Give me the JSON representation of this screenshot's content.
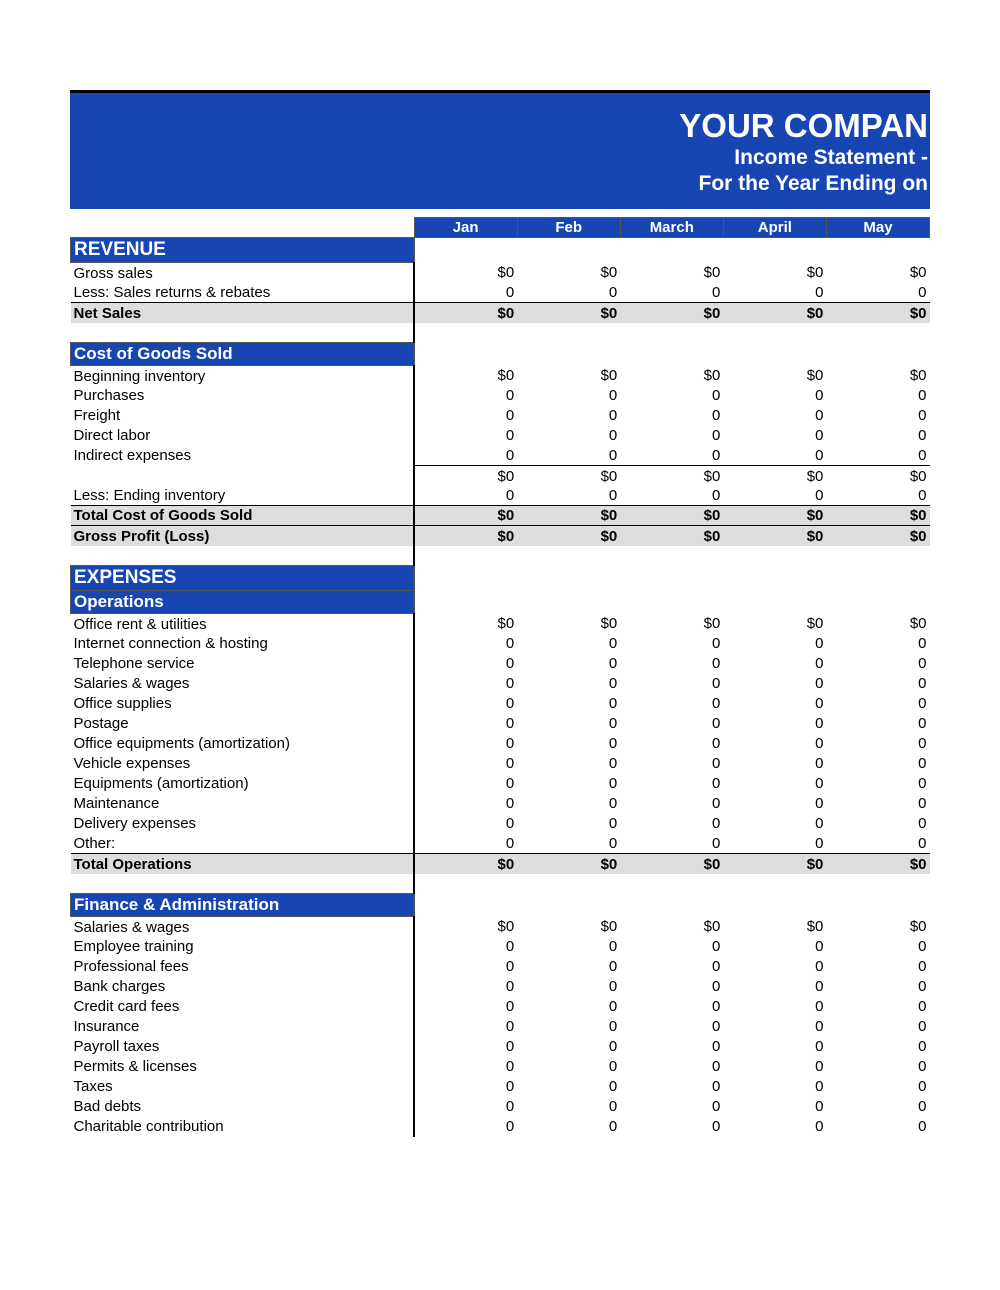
{
  "header": {
    "title": "YOUR COMPAN",
    "sub1": "Income Statement -",
    "sub2": "For the Year Ending on",
    "bg_color": "#1746b3",
    "text_color": "#ffffff"
  },
  "months": [
    "Jan",
    "Feb",
    "March",
    "April",
    "May"
  ],
  "sections": {
    "revenue": {
      "title": "REVENUE",
      "lines": [
        {
          "label": "Gross sales",
          "vals": [
            "$0",
            "$0",
            "$0",
            "$0",
            "$0"
          ]
        },
        {
          "label": "Less: Sales returns & rebates",
          "vals": [
            "0",
            "0",
            "0",
            "0",
            "0"
          ]
        }
      ],
      "net": {
        "label": "Net Sales",
        "vals": [
          "$0",
          "$0",
          "$0",
          "$0",
          "$0"
        ]
      }
    },
    "cogs": {
      "title": "Cost of Goods Sold",
      "lines": [
        {
          "label": "Beginning inventory",
          "vals": [
            "$0",
            "$0",
            "$0",
            "$0",
            "$0"
          ]
        },
        {
          "label": "Purchases",
          "vals": [
            "0",
            "0",
            "0",
            "0",
            "0"
          ]
        },
        {
          "label": "Freight",
          "vals": [
            "0",
            "0",
            "0",
            "0",
            "0"
          ]
        },
        {
          "label": "Direct labor",
          "vals": [
            "0",
            "0",
            "0",
            "0",
            "0"
          ]
        },
        {
          "label": "Indirect expenses",
          "vals": [
            "0",
            "0",
            "0",
            "0",
            "0"
          ]
        }
      ],
      "subtotal": {
        "label": "",
        "vals": [
          "$0",
          "$0",
          "$0",
          "$0",
          "$0"
        ]
      },
      "less": {
        "label": "Less: Ending inventory",
        "vals": [
          "0",
          "0",
          "0",
          "0",
          "0"
        ]
      },
      "total": {
        "label": "Total Cost of Goods Sold",
        "vals": [
          "$0",
          "$0",
          "$0",
          "$0",
          "$0"
        ]
      },
      "gross": {
        "label": "Gross Profit (Loss)",
        "vals": [
          "$0",
          "$0",
          "$0",
          "$0",
          "$0"
        ]
      }
    },
    "expenses_title": "EXPENSES",
    "operations": {
      "title": "Operations",
      "lines": [
        {
          "label": "Office rent & utilities",
          "vals": [
            "$0",
            "$0",
            "$0",
            "$0",
            "$0"
          ]
        },
        {
          "label": "Internet connection & hosting",
          "vals": [
            "0",
            "0",
            "0",
            "0",
            "0"
          ]
        },
        {
          "label": "Telephone service",
          "vals": [
            "0",
            "0",
            "0",
            "0",
            "0"
          ]
        },
        {
          "label": "Salaries & wages",
          "vals": [
            "0",
            "0",
            "0",
            "0",
            "0"
          ]
        },
        {
          "label": "Office supplies",
          "vals": [
            "0",
            "0",
            "0",
            "0",
            "0"
          ]
        },
        {
          "label": "Postage",
          "vals": [
            "0",
            "0",
            "0",
            "0",
            "0"
          ]
        },
        {
          "label": "Office equipments (amortization)",
          "vals": [
            "0",
            "0",
            "0",
            "0",
            "0"
          ]
        },
        {
          "label": "Vehicle expenses",
          "vals": [
            "0",
            "0",
            "0",
            "0",
            "0"
          ]
        },
        {
          "label": "Equipments (amortization)",
          "vals": [
            "0",
            "0",
            "0",
            "0",
            "0"
          ]
        },
        {
          "label": "Maintenance",
          "vals": [
            "0",
            "0",
            "0",
            "0",
            "0"
          ]
        },
        {
          "label": "Delivery expenses",
          "vals": [
            "0",
            "0",
            "0",
            "0",
            "0"
          ]
        },
        {
          "label": "Other:",
          "vals": [
            "0",
            "0",
            "0",
            "0",
            "0"
          ]
        }
      ],
      "total": {
        "label": "Total Operations",
        "vals": [
          "$0",
          "$0",
          "$0",
          "$0",
          "$0"
        ]
      }
    },
    "finadmin": {
      "title": "Finance & Administration",
      "lines": [
        {
          "label": "Salaries & wages",
          "vals": [
            "$0",
            "$0",
            "$0",
            "$0",
            "$0"
          ]
        },
        {
          "label": "Employee training",
          "vals": [
            "0",
            "0",
            "0",
            "0",
            "0"
          ]
        },
        {
          "label": "Professional fees",
          "vals": [
            "0",
            "0",
            "0",
            "0",
            "0"
          ]
        },
        {
          "label": "Bank charges",
          "vals": [
            "0",
            "0",
            "0",
            "0",
            "0"
          ]
        },
        {
          "label": "Credit card fees",
          "vals": [
            "0",
            "0",
            "0",
            "0",
            "0"
          ]
        },
        {
          "label": "Insurance",
          "vals": [
            "0",
            "0",
            "0",
            "0",
            "0"
          ]
        },
        {
          "label": "Payroll taxes",
          "vals": [
            "0",
            "0",
            "0",
            "0",
            "0"
          ]
        },
        {
          "label": "Permits & licenses",
          "vals": [
            "0",
            "0",
            "0",
            "0",
            "0"
          ]
        },
        {
          "label": "Taxes",
          "vals": [
            "0",
            "0",
            "0",
            "0",
            "0"
          ]
        },
        {
          "label": "Bad debts",
          "vals": [
            "0",
            "0",
            "0",
            "0",
            "0"
          ]
        },
        {
          "label": "Charitable contribution",
          "vals": [
            "0",
            "0",
            "0",
            "0",
            "0"
          ]
        }
      ]
    }
  },
  "style": {
    "section_bg": "#1746b3",
    "total_bg": "#dddddd",
    "font_family": "Arial",
    "body_fontsize": 15,
    "header_fontsize": 33,
    "subheader_fontsize": 21
  }
}
